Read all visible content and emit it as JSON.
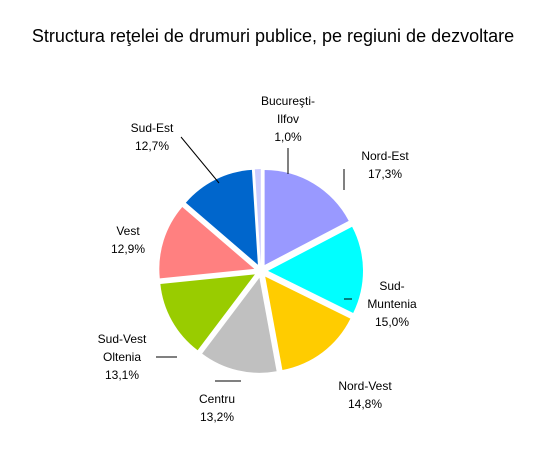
{
  "chart_data": {
    "type": "pie",
    "title": "Structura reţelei de drumuri publice, pe regiuni de dezvoltare",
    "legend": "none",
    "slices": [
      {
        "lines": [
          "Nord-Est",
          "17,3%"
        ],
        "value": 17.3,
        "color": "#9999ff"
      },
      {
        "lines": [
          "Sud-",
          "Muntenia",
          "15,0%"
        ],
        "value": 15.0,
        "color": "#00ffff"
      },
      {
        "lines": [
          "Nord-Vest",
          "14,8%"
        ],
        "value": 14.8,
        "color": "#ffcc00"
      },
      {
        "lines": [
          "Centru",
          "13,2%"
        ],
        "value": 13.2,
        "color": "#c0c0c0"
      },
      {
        "lines": [
          "Sud-Vest",
          "Oltenia",
          "13,1%"
        ],
        "value": 13.1,
        "color": "#99cc00"
      },
      {
        "lines": [
          "Vest",
          "12,9%"
        ],
        "value": 12.9,
        "color": "#ff8080"
      },
      {
        "lines": [
          "Sud-Est",
          "12,7%"
        ],
        "value": 12.7,
        "color": "#0066cc"
      },
      {
        "lines": [
          "Bucureşti-",
          "Ilfov",
          "1,0%"
        ],
        "value": 1.0,
        "color": "#ccccff"
      }
    ]
  }
}
